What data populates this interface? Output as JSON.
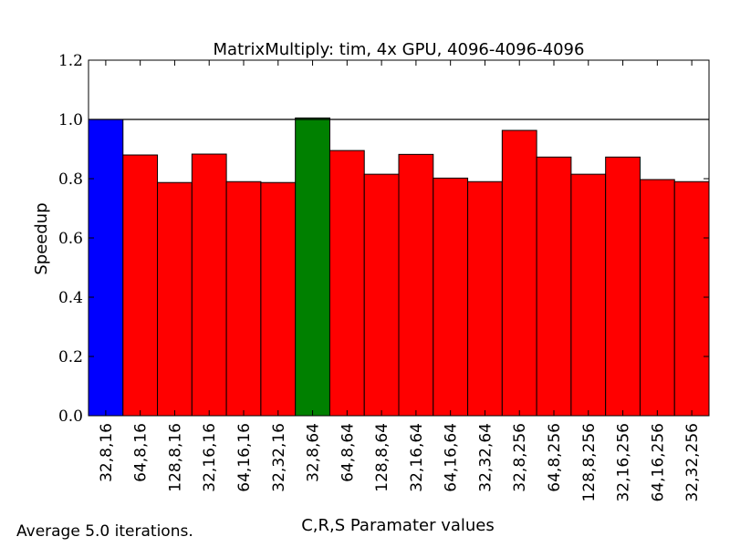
{
  "chart_data": {
    "type": "bar",
    "title": "MatrixMultiply: tim, 4x GPU, 4096-4096-4096",
    "xlabel": "C,R,S Paramater values",
    "ylabel": "Speedup",
    "ylim": [
      0,
      1.2
    ],
    "yticks": [
      "0.0",
      "0.2",
      "0.4",
      "0.6",
      "0.8",
      "1.0",
      "1.2"
    ],
    "reference_line": 1.0,
    "grid": false,
    "categories": [
      "32,8,16",
      "64,8,16",
      "128,8,16",
      "32,16,16",
      "64,16,16",
      "32,32,16",
      "32,8,64",
      "64,8,64",
      "128,8,64",
      "32,16,64",
      "64,16,64",
      "32,32,64",
      "32,8,256",
      "64,8,256",
      "128,8,256",
      "32,16,256",
      "64,16,256",
      "32,32,256"
    ],
    "values": [
      1.0,
      0.88,
      0.787,
      0.883,
      0.79,
      0.787,
      1.005,
      0.895,
      0.815,
      0.882,
      0.802,
      0.79,
      0.963,
      0.873,
      0.815,
      0.873,
      0.797,
      0.79
    ],
    "colors": [
      "#0000ff",
      "#ff0000",
      "#ff0000",
      "#ff0000",
      "#ff0000",
      "#ff0000",
      "#008000",
      "#ff0000",
      "#ff0000",
      "#ff0000",
      "#ff0000",
      "#ff0000",
      "#ff0000",
      "#ff0000",
      "#ff0000",
      "#ff0000",
      "#ff0000",
      "#ff0000"
    ]
  },
  "footnote": "Average 5.0 iterations."
}
